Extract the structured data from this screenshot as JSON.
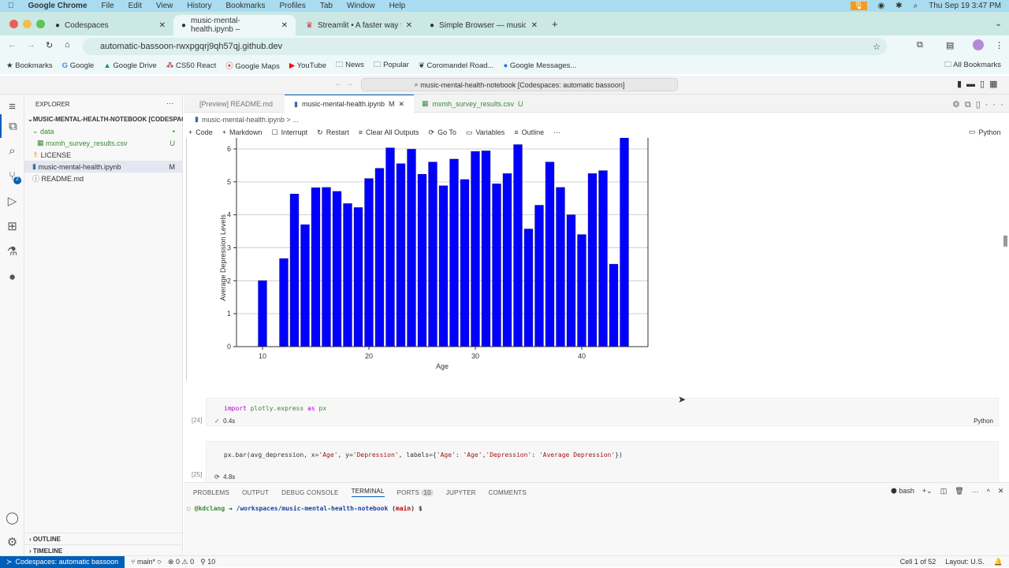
{
  "menubar": {
    "apple": "",
    "app": "Google Chrome",
    "items": [
      "File",
      "Edit",
      "View",
      "History",
      "Bookmarks",
      "Profiles",
      "Tab",
      "Window",
      "Help"
    ],
    "datetime": "Thu Sep 19  3:47 PM"
  },
  "chrome": {
    "tabs": [
      {
        "label": "Codespaces",
        "icon": "github-icon"
      },
      {
        "label": "music-mental-health.ipynb –",
        "icon": "github-icon",
        "active": true
      },
      {
        "label": "Streamlit • A faster way to bu",
        "icon": "streamlit-icon"
      },
      {
        "label": "Simple Browser — music-me",
        "icon": "github-icon"
      }
    ],
    "url": "automatic-bassoon-rwxpgqrj9qh57qj.github.dev",
    "bookmarks": [
      "Bookmarks",
      "Google",
      "Google Drive",
      "CS50 React",
      "Google Maps",
      "YouTube",
      "News",
      "Popular",
      "Coromandel Road...",
      "Google Messages..."
    ],
    "all_bookmarks": "All Bookmarks"
  },
  "vscode": {
    "command_center": "music-mental-health-notebook [Codespaces: automatic bassoon]",
    "explorer_title": "EXPLORER",
    "root": "MUSIC-MENTAL-HEALTH-NOTEBOOK [CODESPACES]",
    "tree": [
      {
        "label": "data",
        "badge": "•",
        "color": "#388a34"
      },
      {
        "label": "mxmh_survey_results.csv",
        "badge": "U",
        "color": "#388a34"
      },
      {
        "label": "LICENSE",
        "badge": ""
      },
      {
        "label": "music-mental-health.ipynb",
        "badge": "M",
        "selected": true
      },
      {
        "label": "README.md",
        "badge": ""
      }
    ],
    "outline": "OUTLINE",
    "timeline": "TIMELINE",
    "scm_badge": "2",
    "editor_tabs": [
      {
        "label": "[Preview] README.md"
      },
      {
        "label": "music-mental-health.ipynb",
        "badge": "M",
        "active": true
      },
      {
        "label": "mxmh_survey_results.csv",
        "badge": "U"
      }
    ],
    "breadcrumb": "music-mental-health.ipynb > ...",
    "toolbar": [
      "Code",
      "Markdown",
      "Interrupt",
      "Restart",
      "Clear All Outputs",
      "Go To",
      "Variables",
      "Outline",
      "···"
    ],
    "kernel": "Python",
    "cells": [
      {
        "exec": "[24]",
        "time": "0.4s",
        "lang": "Python",
        "code": {
          "kw1": "import",
          "mod": " plotly.express ",
          "kw2": "as",
          "alias": " px"
        }
      },
      {
        "exec": "[25]",
        "time": "4.8s",
        "code": {
          "pre": "px.bar(avg_depression, x=",
          "a": "'Age'",
          "b": ", y=",
          "c": "'Depression'",
          "d": ", labels={",
          "e": "'Age'",
          "f": ": ",
          "g": "'Age'",
          "h": ",",
          "i": "'Depression'",
          "j": ": ",
          "k": "'Average Depression'",
          "l": "})"
        }
      }
    ],
    "panel_tabs": [
      "PROBLEMS",
      "OUTPUT",
      "DEBUG CONSOLE",
      "TERMINAL",
      "PORTS",
      "JUPYTER",
      "COMMENTS"
    ],
    "ports_count": "10",
    "active_panel": "TERMINAL",
    "shell": "bash",
    "terminal": {
      "user": "@kdclang",
      "arrow": " → ",
      "path": "/workspaces/music-mental-health-notebook",
      "branch_open": " (",
      "branch": "main",
      "branch_close": ") $"
    },
    "status": {
      "remote": "Codespaces: automatic bassoon",
      "branch": "main*",
      "errors": "0",
      "warnings": "0",
      "ports": "10",
      "cell": "Cell 1 of 52",
      "layout": "Layout: U.S."
    }
  },
  "chart_data": {
    "type": "bar",
    "xlabel": "Age",
    "ylabel": "Average Depression Levels",
    "x": [
      10,
      12,
      13,
      14,
      15,
      16,
      17,
      18,
      19,
      20,
      21,
      22,
      23,
      24,
      25,
      26,
      27,
      28,
      29,
      30,
      31,
      32,
      33,
      34,
      35,
      36,
      37,
      38,
      39,
      40,
      41,
      42,
      43,
      44
    ],
    "values": [
      2.0,
      2.67,
      4.63,
      3.7,
      4.82,
      4.83,
      4.71,
      4.34,
      4.22,
      5.1,
      5.41,
      6.03,
      5.55,
      5.99,
      5.23,
      5.6,
      4.88,
      5.69,
      5.07,
      5.92,
      5.94,
      4.94,
      5.25,
      6.13,
      3.57,
      4.29,
      5.6,
      4.83,
      4.0,
      3.4,
      5.25,
      5.34,
      2.5,
      6.4
    ],
    "xticks": [
      "10",
      "20",
      "30",
      "40"
    ],
    "yticks": [
      "0",
      "1",
      "2",
      "3",
      "4",
      "5",
      "6"
    ],
    "color": "#0000ff",
    "grid": true
  }
}
